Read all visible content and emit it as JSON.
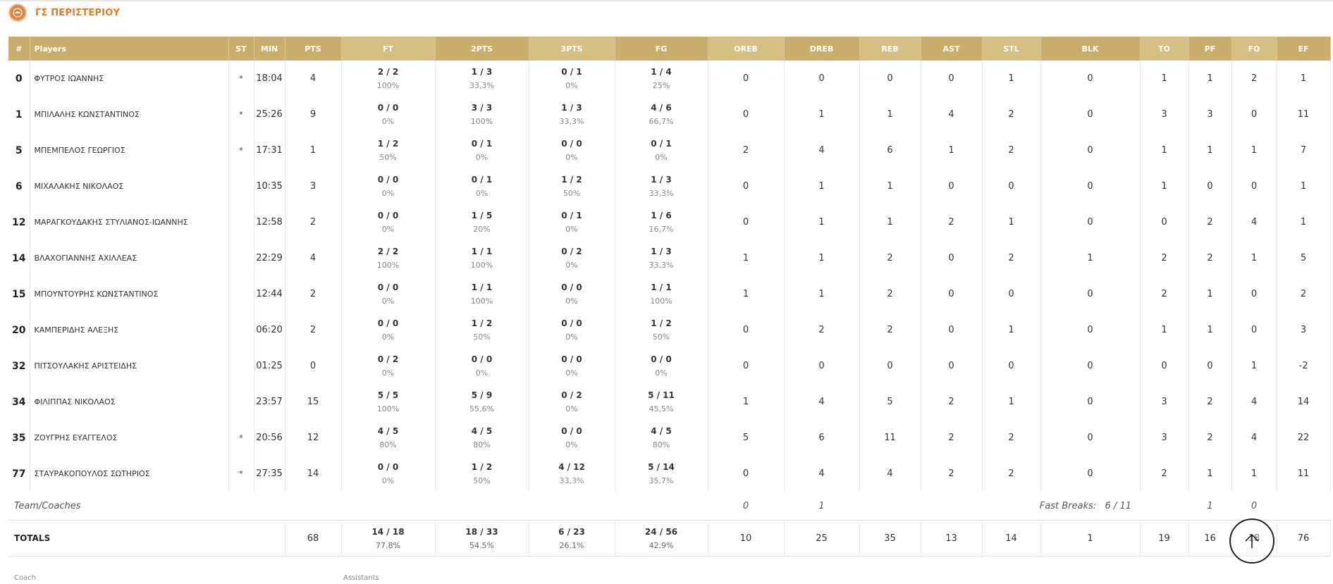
{
  "team": {
    "name": "ΓΣ ΠΕΡΙΣΤΕΡΙΟΥ"
  },
  "columns": {
    "num": "#",
    "players": "Players",
    "st": "ST",
    "min": "MIN",
    "pts": "PTS",
    "ft": "FT",
    "two": "2PTS",
    "three": "3PTS",
    "fg": "FG",
    "oreb": "OREB",
    "dreb": "DREB",
    "reb": "REB",
    "ast": "AST",
    "stl": "STL",
    "blk": "BLK",
    "to": "TO",
    "pf": "PF",
    "fo": "FO",
    "ef": "EF"
  },
  "players": [
    {
      "num": "0",
      "name": "ΦΥΤΡΟΣ ΙΩΑΝΝΗΣ",
      "st": "*",
      "min": "18:04",
      "pts": "4",
      "ft": "2 / 2",
      "ft_pct": "100%",
      "two": "1 / 3",
      "two_pct": "33,3%",
      "three": "0 / 1",
      "three_pct": "0%",
      "fg": "1 / 4",
      "fg_pct": "25%",
      "oreb": "0",
      "dreb": "0",
      "reb": "0",
      "ast": "0",
      "stl": "1",
      "blk": "0",
      "to": "1",
      "pf": "1",
      "fo": "2",
      "ef": "1"
    },
    {
      "num": "1",
      "name": "ΜΠΙΛΑΛΗΣ ΚΩΝΣΤΑΝΤΙΝΟΣ",
      "st": "*",
      "min": "25:26",
      "pts": "9",
      "ft": "0 / 0",
      "ft_pct": "0%",
      "two": "3 / 3",
      "two_pct": "100%",
      "three": "1 / 3",
      "three_pct": "33,3%",
      "fg": "4 / 6",
      "fg_pct": "66,7%",
      "oreb": "0",
      "dreb": "1",
      "reb": "1",
      "ast": "4",
      "stl": "2",
      "blk": "0",
      "to": "3",
      "pf": "3",
      "fo": "0",
      "ef": "11"
    },
    {
      "num": "5",
      "name": "ΜΠΕΜΠΕΛΟΣ ΓΕΩΡΓΙΟΣ",
      "st": "*",
      "min": "17:31",
      "pts": "1",
      "ft": "1 / 2",
      "ft_pct": "50%",
      "two": "0 / 1",
      "two_pct": "0%",
      "three": "0 / 0",
      "three_pct": "0%",
      "fg": "0 / 1",
      "fg_pct": "0%",
      "oreb": "2",
      "dreb": "4",
      "reb": "6",
      "ast": "1",
      "stl": "2",
      "blk": "0",
      "to": "1",
      "pf": "1",
      "fo": "1",
      "ef": "7"
    },
    {
      "num": "6",
      "name": "ΜΙΧΑΛΑΚΗΣ ΝΙΚΟΛΑΟΣ",
      "st": "",
      "min": "10:35",
      "pts": "3",
      "ft": "0 / 0",
      "ft_pct": "0%",
      "two": "0 / 1",
      "two_pct": "0%",
      "three": "1 / 2",
      "three_pct": "50%",
      "fg": "1 / 3",
      "fg_pct": "33,3%",
      "oreb": "0",
      "dreb": "1",
      "reb": "1",
      "ast": "0",
      "stl": "0",
      "blk": "0",
      "to": "1",
      "pf": "0",
      "fo": "0",
      "ef": "1"
    },
    {
      "num": "12",
      "name": "ΜΑΡΑΓΚΟΥΔΑΚΗΣ ΣΤΥΛΙΑΝΟΣ-ΙΩΑΝΝΗΣ",
      "st": "",
      "min": "12:58",
      "pts": "2",
      "ft": "0 / 0",
      "ft_pct": "0%",
      "two": "1 / 5",
      "two_pct": "20%",
      "three": "0 / 1",
      "three_pct": "0%",
      "fg": "1 / 6",
      "fg_pct": "16,7%",
      "oreb": "0",
      "dreb": "1",
      "reb": "1",
      "ast": "2",
      "stl": "1",
      "blk": "0",
      "to": "0",
      "pf": "2",
      "fo": "4",
      "ef": "1"
    },
    {
      "num": "14",
      "name": "ΒΛΑΧΟΓΙΑΝΝΗΣ ΑΧΙΛΛΕΑΣ",
      "st": "",
      "min": "22:29",
      "pts": "4",
      "ft": "2 / 2",
      "ft_pct": "100%",
      "two": "1 / 1",
      "two_pct": "100%",
      "three": "0 / 2",
      "three_pct": "0%",
      "fg": "1 / 3",
      "fg_pct": "33,3%",
      "oreb": "1",
      "dreb": "1",
      "reb": "2",
      "ast": "0",
      "stl": "2",
      "blk": "1",
      "to": "2",
      "pf": "2",
      "fo": "1",
      "ef": "5"
    },
    {
      "num": "15",
      "name": "ΜΠΟΥΝΤΟΥΡΗΣ ΚΩΝΣΤΑΝΤΙΝΟΣ",
      "st": "",
      "min": "12:44",
      "pts": "2",
      "ft": "0 / 0",
      "ft_pct": "0%",
      "two": "1 / 1",
      "two_pct": "100%",
      "three": "0 / 0",
      "three_pct": "0%",
      "fg": "1 / 1",
      "fg_pct": "100%",
      "oreb": "1",
      "dreb": "1",
      "reb": "2",
      "ast": "0",
      "stl": "0",
      "blk": "0",
      "to": "2",
      "pf": "1",
      "fo": "0",
      "ef": "2"
    },
    {
      "num": "20",
      "name": "ΚΑΜΠΕΡΙΔΗΣ ΑΛΕΞΗΣ",
      "st": "",
      "min": "06:20",
      "pts": "2",
      "ft": "0 / 0",
      "ft_pct": "0%",
      "two": "1 / 2",
      "two_pct": "50%",
      "three": "0 / 0",
      "three_pct": "0%",
      "fg": "1 / 2",
      "fg_pct": "50%",
      "oreb": "0",
      "dreb": "2",
      "reb": "2",
      "ast": "0",
      "stl": "1",
      "blk": "0",
      "to": "1",
      "pf": "1",
      "fo": "0",
      "ef": "3"
    },
    {
      "num": "32",
      "name": "ΠΙΤΣΟΥΛΑΚΗΣ ΑΡΙΣΤΕΙΔΗΣ",
      "st": "",
      "min": "01:25",
      "pts": "0",
      "ft": "0 / 2",
      "ft_pct": "0%",
      "two": "0 / 0",
      "two_pct": "0%",
      "three": "0 / 0",
      "three_pct": "0%",
      "fg": "0 / 0",
      "fg_pct": "0%",
      "oreb": "0",
      "dreb": "0",
      "reb": "0",
      "ast": "0",
      "stl": "0",
      "blk": "0",
      "to": "0",
      "pf": "0",
      "fo": "1",
      "ef": "-2"
    },
    {
      "num": "34",
      "name": "ΦΙΛΙΠΠΑΣ ΝΙΚΟΛΑΟΣ",
      "st": "",
      "min": "23:57",
      "pts": "15",
      "ft": "5 / 5",
      "ft_pct": "100%",
      "two": "5 / 9",
      "two_pct": "55,6%",
      "three": "0 / 2",
      "three_pct": "0%",
      "fg": "5 / 11",
      "fg_pct": "45,5%",
      "oreb": "1",
      "dreb": "4",
      "reb": "5",
      "ast": "2",
      "stl": "1",
      "blk": "0",
      "to": "3",
      "pf": "2",
      "fo": "4",
      "ef": "14"
    },
    {
      "num": "35",
      "name": "ΖΟΥΓΡΗΣ ΕΥΑΓΓΕΛΟΣ",
      "st": "*",
      "min": "20:56",
      "pts": "12",
      "ft": "4 / 5",
      "ft_pct": "80%",
      "two": "4 / 5",
      "two_pct": "80%",
      "three": "0 / 0",
      "three_pct": "0%",
      "fg": "4 / 5",
      "fg_pct": "80%",
      "oreb": "5",
      "dreb": "6",
      "reb": "11",
      "ast": "2",
      "stl": "2",
      "blk": "0",
      "to": "3",
      "pf": "2",
      "fo": "4",
      "ef": "22"
    },
    {
      "num": "77",
      "name": "ΣΤΑΥΡΑΚΟΠΟΥΛΟΣ ΣΩΤΗΡΙΟΣ",
      "st": "*",
      "min": "27:35",
      "pts": "14",
      "ft": "0 / 0",
      "ft_pct": "0%",
      "two": "1 / 2",
      "two_pct": "50%",
      "three": "4 / 12",
      "three_pct": "33,3%",
      "fg": "5 / 14",
      "fg_pct": "35,7%",
      "oreb": "0",
      "dreb": "4",
      "reb": "4",
      "ast": "2",
      "stl": "2",
      "blk": "0",
      "to": "2",
      "pf": "1",
      "fo": "1",
      "ef": "11"
    }
  ],
  "team_coaches": {
    "label": "Team/Coaches",
    "oreb": "0",
    "dreb": "1",
    "fast_breaks_label": "Fast Breaks:",
    "fast_breaks_value": "6 / 11",
    "to": "1",
    "pf": "0"
  },
  "totals": {
    "label": "TOTALS",
    "pts": "68",
    "ft": "14 / 18",
    "ft_pct": "77.8%",
    "two": "18 / 33",
    "two_pct": "54.5%",
    "three": "6 / 23",
    "three_pct": "26.1%",
    "fg": "24 / 56",
    "fg_pct": "42.9%",
    "oreb": "10",
    "dreb": "25",
    "reb": "35",
    "ast": "13",
    "stl": "14",
    "blk": "1",
    "to": "19",
    "pf": "16",
    "fo": "18",
    "ef": "76"
  },
  "staff": {
    "coach_label": "Coach",
    "assistants_label": "Assistants"
  },
  "colors": {
    "header_bg": "#c9ae6b",
    "header_alt_bg": "#d6bf83",
    "team_name": "#e37a22"
  },
  "icons": {
    "logo": "team-logo-icon",
    "scroll_top": "arrow-up-icon"
  }
}
